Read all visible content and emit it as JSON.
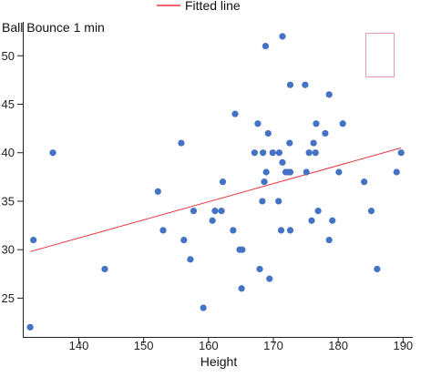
{
  "chart_data": {
    "type": "scatter",
    "xlabel": "Height",
    "ylabel": "Ball Bounce 1 min",
    "xlim": [
      131.5,
      191.5
    ],
    "ylim": [
      21,
      53.5
    ],
    "x_ticks": [
      140,
      150,
      160,
      170,
      180,
      190
    ],
    "y_ticks": [
      25,
      30,
      35,
      40,
      45,
      50
    ],
    "grid": false,
    "legend": {
      "position": "top-center",
      "entries": [
        "Fitted line"
      ]
    },
    "colors": {
      "points": "#4472c4",
      "fitted_line": "#e8323c",
      "box": "#e59ab6",
      "axis": "#222222"
    },
    "series": [
      {
        "values": [
          [
            132.5,
            22
          ],
          [
            133,
            31
          ],
          [
            136,
            40
          ],
          [
            144,
            28
          ],
          [
            152.2,
            36
          ],
          [
            153,
            32
          ],
          [
            155.8,
            41
          ],
          [
            156.2,
            31
          ],
          [
            157.2,
            29
          ],
          [
            157.7,
            34
          ],
          [
            159.2,
            24
          ],
          [
            160.6,
            33
          ],
          [
            161,
            34
          ],
          [
            162,
            34
          ],
          [
            162.2,
            37
          ],
          [
            163.8,
            32
          ],
          [
            164.1,
            44
          ],
          [
            164.8,
            30
          ],
          [
            165.2,
            30
          ],
          [
            165.1,
            26
          ],
          [
            167.1,
            40
          ],
          [
            167.6,
            43
          ],
          [
            167.9,
            28
          ],
          [
            168.3,
            35
          ],
          [
            168.4,
            40
          ],
          [
            168.6,
            37
          ],
          [
            168.8,
            51
          ],
          [
            168.9,
            38
          ],
          [
            169.2,
            42
          ],
          [
            169.4,
            27
          ],
          [
            169.9,
            40
          ],
          [
            170.9,
            40
          ],
          [
            170.8,
            35
          ],
          [
            171.2,
            32
          ],
          [
            171.4,
            39
          ],
          [
            171.4,
            52
          ],
          [
            171.9,
            38
          ],
          [
            172.3,
            38
          ],
          [
            172.5,
            41
          ],
          [
            172.6,
            47
          ],
          [
            172.6,
            32
          ],
          [
            172.6,
            38
          ],
          [
            174.9,
            47
          ],
          [
            175.1,
            38
          ],
          [
            175.5,
            40
          ],
          [
            175.9,
            33
          ],
          [
            176.2,
            41
          ],
          [
            176.5,
            40
          ],
          [
            176.6,
            43
          ],
          [
            176.9,
            34
          ],
          [
            178,
            42
          ],
          [
            178.6,
            46
          ],
          [
            178.6,
            31
          ],
          [
            179.1,
            33
          ],
          [
            180.1,
            38
          ],
          [
            180.7,
            43
          ],
          [
            184,
            37
          ],
          [
            185.1,
            34
          ],
          [
            186,
            28
          ],
          [
            189,
            38
          ],
          [
            189.7,
            40
          ]
        ]
      }
    ],
    "fitted_line": {
      "x": [
        132.5,
        189.7
      ],
      "y": [
        29.8,
        40.5
      ]
    }
  }
}
